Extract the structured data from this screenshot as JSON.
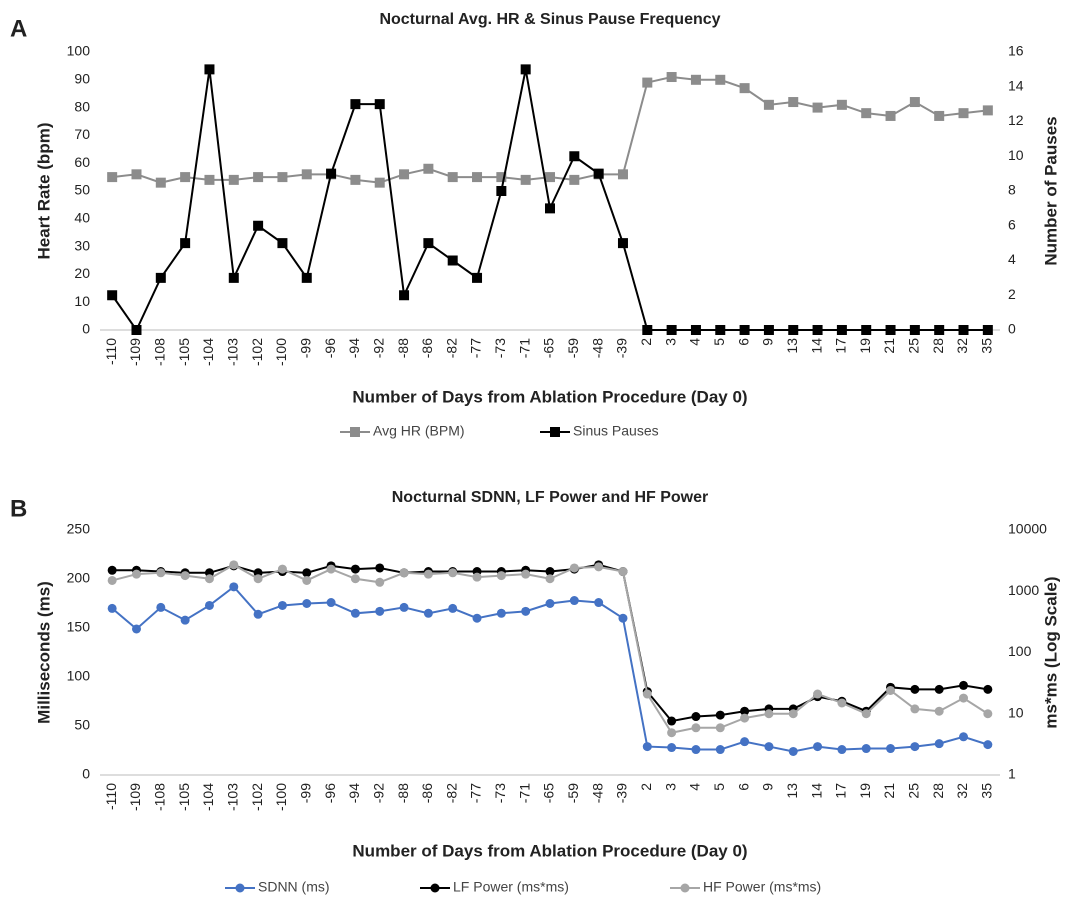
{
  "chart_data": [
    {
      "type": "line",
      "panel_label": "A",
      "title": "Nocturnal Avg. HR & Sinus Pause Frequency",
      "x_label": "Number of Days from Ablation Procedure (Day 0)",
      "y_label": "Heart Rate (bpm)",
      "y2_label": "Number of Pauses",
      "categories": [
        "-110",
        "-109",
        "-108",
        "-105",
        "-104",
        "-103",
        "-102",
        "-100",
        "-99",
        "-96",
        "-94",
        "-92",
        "-88",
        "-86",
        "-82",
        "-77",
        "-73",
        "-71",
        "-65",
        "-59",
        "-48",
        "-39",
        "2",
        "3",
        "4",
        "5",
        "6",
        "9",
        "13",
        "14",
        "17",
        "19",
        "21",
        "25",
        "28",
        "32",
        "35"
      ],
      "ylim": [
        0,
        100
      ],
      "yticks": [
        0,
        10,
        20,
        30,
        40,
        50,
        60,
        70,
        80,
        90,
        100
      ],
      "y2lim": [
        0,
        16
      ],
      "y2ticks": [
        0,
        2,
        4,
        6,
        8,
        10,
        12,
        14,
        16
      ],
      "grid": false,
      "series": [
        {
          "name": "Avg HR (BPM)",
          "color": "#8c8c8c",
          "marker": "square",
          "axis": "y",
          "values": [
            55,
            56,
            53,
            55,
            54,
            54,
            55,
            55,
            56,
            56,
            54,
            53,
            56,
            58,
            55,
            55,
            55,
            54,
            55,
            54,
            56,
            56,
            89,
            91,
            90,
            90,
            87,
            81,
            82,
            80,
            81,
            78,
            77,
            82,
            77,
            78,
            79
          ]
        },
        {
          "name": "Sinus Pauses",
          "color": "#000000",
          "marker": "square",
          "axis": "y2",
          "values": [
            2,
            0,
            3,
            5,
            15,
            3,
            6,
            5,
            3,
            9,
            13,
            13,
            2,
            5,
            4,
            3,
            8,
            15,
            7,
            10,
            9,
            5,
            0,
            0,
            0,
            0,
            0,
            0,
            0,
            0,
            0,
            0,
            0,
            0,
            0,
            0,
            0
          ]
        }
      ]
    },
    {
      "type": "line",
      "panel_label": "B",
      "title": "Nocturnal SDNN, LF Power and HF Power",
      "x_label": "Number of Days from Ablation Procedure (Day 0)",
      "y_label": "Milliseconds (ms)",
      "y2_label": "ms*ms (Log Scale)",
      "categories": [
        "-110",
        "-109",
        "-108",
        "-105",
        "-104",
        "-103",
        "-102",
        "-100",
        "-99",
        "-96",
        "-94",
        "-92",
        "-88",
        "-86",
        "-82",
        "-77",
        "-73",
        "-71",
        "-65",
        "-59",
        "-48",
        "-39",
        "2",
        "3",
        "4",
        "5",
        "6",
        "9",
        "13",
        "14",
        "17",
        "19",
        "21",
        "25",
        "28",
        "32",
        "35"
      ],
      "ylim": [
        0,
        250
      ],
      "yticks": [
        0,
        50,
        100,
        150,
        200,
        250
      ],
      "y2lim": [
        1,
        10000
      ],
      "y2ticks": [
        1,
        10,
        100,
        1000,
        10000
      ],
      "y2_log": true,
      "grid": false,
      "series": [
        {
          "name": "SDNN (ms)",
          "color": "#4472c4",
          "marker": "circle",
          "axis": "y",
          "values": [
            170,
            149,
            171,
            158,
            173,
            192,
            164,
            173,
            175,
            176,
            165,
            167,
            171,
            165,
            170,
            160,
            165,
            167,
            175,
            178,
            176,
            160,
            29,
            28,
            26,
            26,
            34,
            29,
            24,
            29,
            26,
            27,
            27,
            29,
            32,
            39,
            31
          ]
        },
        {
          "name": "LF Power (ms*ms)",
          "color": "#000000",
          "marker": "circle",
          "axis": "y2",
          "values": [
            2200,
            2200,
            2100,
            2000,
            2000,
            2600,
            2000,
            2100,
            2000,
            2600,
            2300,
            2400,
            2000,
            2100,
            2100,
            2100,
            2100,
            2200,
            2100,
            2300,
            2700,
            2100,
            23,
            7.6,
            9,
            9.5,
            11,
            12,
            12,
            19,
            16,
            11,
            27,
            25,
            25,
            29,
            25
          ]
        },
        {
          "name": "HF Power (ms*ms)",
          "color": "#a6a6a6",
          "marker": "circle",
          "axis": "y2",
          "values": [
            1500,
            1900,
            2000,
            1800,
            1600,
            2700,
            1600,
            2300,
            1500,
            2300,
            1600,
            1400,
            2000,
            1900,
            2000,
            1700,
            1800,
            1900,
            1600,
            2400,
            2500,
            2100,
            21,
            4.9,
            5.9,
            5.9,
            8.5,
            10,
            10,
            21,
            15,
            10,
            24,
            12,
            11,
            18,
            10
          ]
        }
      ]
    }
  ]
}
